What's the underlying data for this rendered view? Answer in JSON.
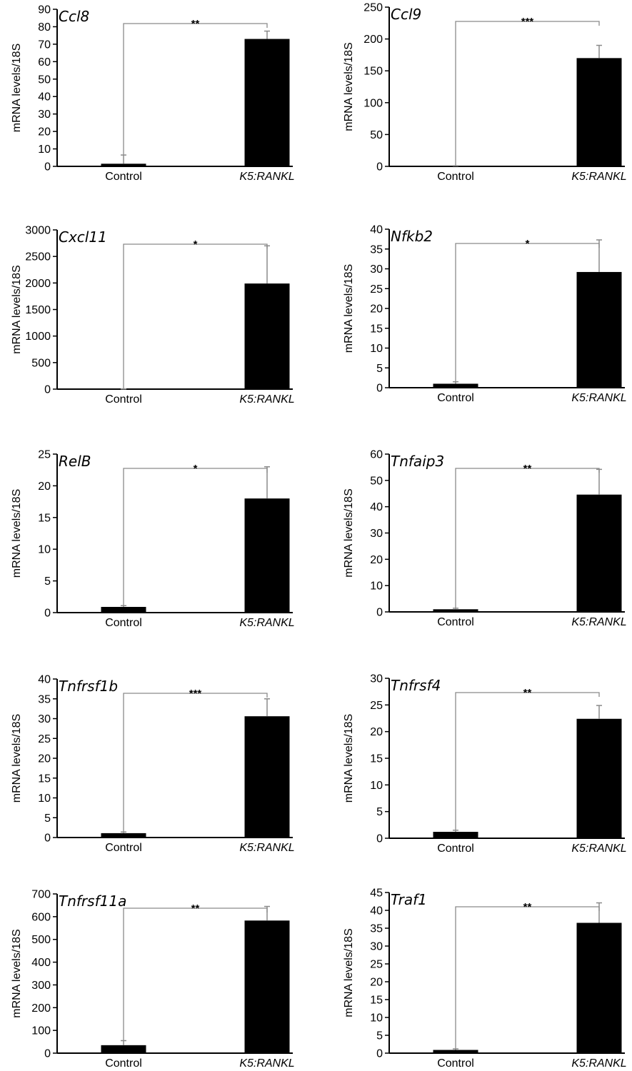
{
  "chart_data": [
    {
      "type": "bar",
      "title": "Ccl8",
      "ylabel": "mRNA levels/18S",
      "categories": [
        "Control",
        "K5:RANKL"
      ],
      "values": [
        1.5,
        73
      ],
      "errors": [
        5,
        4.5
      ],
      "ylim": [
        0,
        90
      ],
      "yticks": [
        "0",
        "10",
        "20",
        "30",
        "40",
        "50",
        "60",
        "70",
        "80",
        "90"
      ],
      "significance": "**"
    },
    {
      "type": "bar",
      "title": "Ccl9",
      "ylabel": "mRNA levels/18S",
      "categories": [
        "Control",
        "K5:RANKL"
      ],
      "values": [
        0.5,
        170
      ],
      "errors": [
        0.5,
        20
      ],
      "ylim": [
        0,
        250
      ],
      "yticks": [
        "0",
        "50",
        "100",
        "150",
        "200",
        "250"
      ],
      "significance": "***"
    },
    {
      "type": "bar",
      "title": "Cxcl11",
      "ylabel": "mRNA levels/18S",
      "categories": [
        "Control",
        "K5:RANKL"
      ],
      "values": [
        2,
        1990
      ],
      "errors": [
        1,
        710
      ],
      "ylim": [
        0,
        3000
      ],
      "yticks": [
        "0",
        "500",
        "1000",
        "1500",
        "2000",
        "2500",
        "3000"
      ],
      "significance": "*"
    },
    {
      "type": "bar",
      "title": "Nfkb2",
      "ylabel": "mRNA levels/18S",
      "categories": [
        "Control",
        "K5:RANKL"
      ],
      "values": [
        1,
        29.2
      ],
      "errors": [
        0.5,
        8.1
      ],
      "ylim": [
        0,
        40
      ],
      "yticks": [
        "0",
        "5",
        "10",
        "15",
        "20",
        "25",
        "30",
        "35",
        "40"
      ],
      "significance": "*"
    },
    {
      "type": "bar",
      "title": "RelB",
      "ylabel": "mRNA levels/18S",
      "categories": [
        "Control",
        "K5:RANKL"
      ],
      "values": [
        0.9,
        18
      ],
      "errors": [
        0.2,
        5
      ],
      "ylim": [
        0,
        25
      ],
      "yticks": [
        "0",
        "5",
        "10",
        "15",
        "20",
        "25"
      ],
      "significance": "*"
    },
    {
      "type": "bar",
      "title": "Tnfaip3",
      "ylabel": "mRNA levels/18S",
      "categories": [
        "Control",
        "K5:RANKL"
      ],
      "values": [
        1,
        44.6
      ],
      "errors": [
        0.4,
        9.6
      ],
      "ylim": [
        0,
        60
      ],
      "yticks": [
        "0",
        "10",
        "20",
        "30",
        "40",
        "50",
        "60"
      ],
      "significance": "**"
    },
    {
      "type": "bar",
      "title": "Tnfrsf1b",
      "ylabel": "mRNA levels/18S",
      "categories": [
        "Control",
        "K5:RANKL"
      ],
      "values": [
        1.1,
        30.6
      ],
      "errors": [
        0.3,
        4.4
      ],
      "ylim": [
        0,
        40
      ],
      "yticks": [
        "0",
        "5",
        "10",
        "15",
        "20",
        "25",
        "30",
        "35",
        "40"
      ],
      "significance": "***"
    },
    {
      "type": "bar",
      "title": "Tnfrsf4",
      "ylabel": "mRNA levels/18S",
      "categories": [
        "Control",
        "K5:RANKL"
      ],
      "values": [
        1.2,
        22.4
      ],
      "errors": [
        0.3,
        2.5
      ],
      "ylim": [
        0,
        30
      ],
      "yticks": [
        "0",
        "5",
        "10",
        "15",
        "20",
        "25",
        "30"
      ],
      "significance": "**"
    },
    {
      "type": "bar",
      "title": "Tnfrsf11a",
      "ylabel": "mRNA levels/18S",
      "categories": [
        "Control",
        "K5:RANKL"
      ],
      "values": [
        35,
        583
      ],
      "errors": [
        20,
        62
      ],
      "ylim": [
        0,
        700
      ],
      "yticks": [
        "0",
        "100",
        "200",
        "300",
        "400",
        "500",
        "600",
        "700"
      ],
      "significance": "**"
    },
    {
      "type": "bar",
      "title": "Traf1",
      "ylabel": "mRNA levels/18S",
      "categories": [
        "Control",
        "K5:RANKL"
      ],
      "values": [
        0.9,
        36.5
      ],
      "errors": [
        0.3,
        5.6
      ],
      "ylim": [
        0,
        45
      ],
      "yticks": [
        "0",
        "5",
        "10",
        "15",
        "20",
        "25",
        "30",
        "35",
        "40",
        "45"
      ],
      "significance": "**"
    }
  ],
  "colors": {
    "bar": "#000000",
    "axis": "#000000",
    "bracket": "#8a8a8a",
    "errorbar": "#8a8a8a"
  }
}
